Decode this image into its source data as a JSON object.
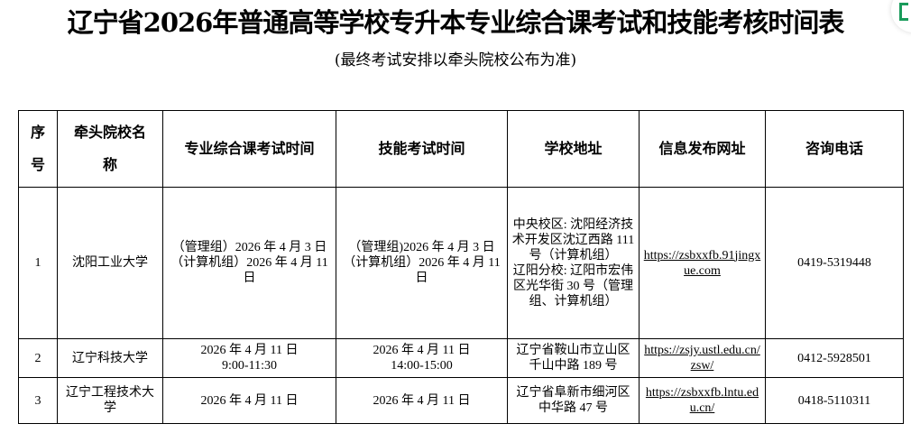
{
  "title": "辽宁省2026年普通高等学校专升本专业综合课考试和技能考核时间表",
  "subtitle": "(最终考试安排以牵头院校公布为准)",
  "table": {
    "headers": [
      "序号",
      "牵头院校名称",
      "专业综合课考试时间",
      "技能考试时间",
      "学校地址",
      "信息发布网址",
      "咨询电话"
    ],
    "rows": [
      {
        "no": "1",
        "school": "沈阳工业大学",
        "comp": "（管理组）2026 年 4 月 3 日\n（计算机组）2026 年 4 月 11 日",
        "skill": "（管理组)2026 年 4 月 3 日\n（计算机组）2026 年 4 月 11 日",
        "addr": "中央校区: 沈阳经济技术开发区沈辽西路 111 号（计算机组）\n辽阳分校: 辽阳市宏伟区光华街 30 号（管理组、计算机组）",
        "url": "https://zsbxxfb.91jingxue.com",
        "phone": "0419-5319448"
      },
      {
        "no": "2",
        "school": "辽宁科技大学",
        "comp": "2026 年 4 月 11 日\n9:00-11:30",
        "skill": "2026 年 4 月 11 日\n14:00-15:00",
        "addr": "辽宁省鞍山市立山区千山中路 189 号",
        "url": "https://zsjy.ustl.edu.cn/zsw/",
        "phone": "0412-5928501"
      },
      {
        "no": "3",
        "school": "辽宁工程技术大学",
        "comp": "2026 年 4 月 11 日",
        "skill": "2026 年 4 月 11 日",
        "addr": "辽宁省阜新市细河区中华路 47 号",
        "url": "https://zsbxxfb.lntu.edu.cn/",
        "phone": "0418-5110311"
      }
    ]
  },
  "colors": {
    "fab_icon": "#1a9b5b"
  },
  "icons": {
    "fab": "app-icon"
  }
}
